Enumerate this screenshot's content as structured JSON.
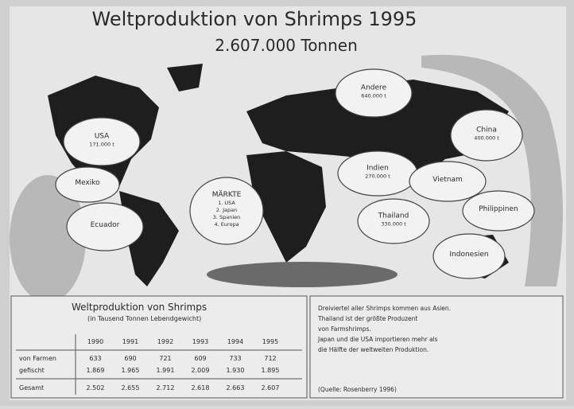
{
  "header": {
    "title": "Weltproduktion von Shrimps 1995",
    "subtitle": "2.607.000 Tonnen"
  },
  "map": {
    "regions": [
      {
        "label": "USA",
        "lines": [
          "171.000 t"
        ]
      },
      {
        "label": "Mexiko",
        "lines": []
      },
      {
        "label": "Ecuador",
        "lines": []
      },
      {
        "label": "MÄRKTE",
        "lines": [
          "1. USA",
          "2. Japan",
          "3. Spanien",
          "4. Europa"
        ]
      },
      {
        "label": "Andere",
        "lines": [
          "640.000 t"
        ]
      },
      {
        "label": "China",
        "lines": [
          "400.000 t"
        ]
      },
      {
        "label": "Indien",
        "lines": [
          "270.000 t"
        ]
      },
      {
        "label": "Vietnam",
        "lines": []
      },
      {
        "label": "Thailand",
        "lines": [
          "330.000 t"
        ]
      },
      {
        "label": "Philippinen",
        "lines": []
      },
      {
        "label": "Indonesien",
        "lines": []
      }
    ]
  },
  "table": {
    "title": "Weltproduktion von Shrimps",
    "subtitle": "(in Tausend Tonnen Lebendgewicht)",
    "columns": [
      "1990",
      "1991",
      "1992",
      "1993",
      "1994",
      "1995"
    ],
    "rows": [
      [
        "von Farmen",
        "633",
        "690",
        "721",
        "609",
        "733",
        "712"
      ],
      [
        "gefischt",
        "1.869",
        "1.965",
        "1.991",
        "2.009",
        "1.930",
        "1.895"
      ],
      [
        "Gesamt",
        "2.502",
        "2.655",
        "2.712",
        "2.618",
        "2.663",
        "2.607"
      ]
    ]
  },
  "note": {
    "lines": [
      "Dreiviertel aller Shrimps kommen aus Asien.",
      "Thailand ist der größte Produzent",
      "von Farmshrimps.",
      "Japan und die USA importieren mehr als",
      "die Hälfte der weltweiten Produktion."
    ],
    "source": "(Quelle: Rosenberry 1996)"
  }
}
